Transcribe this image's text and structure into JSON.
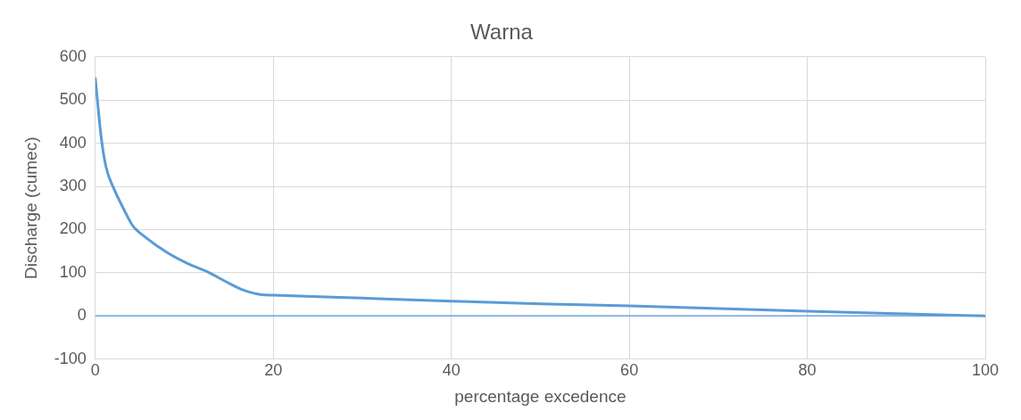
{
  "chart_data": {
    "type": "line",
    "title": "Warna",
    "xlabel": "percentage excedence",
    "ylabel": "Discharge (cumec)",
    "series": [
      {
        "color": "#5b9bd5",
        "x": [
          0,
          0.65,
          1.2,
          2.1,
          3.1,
          4.2,
          5.7,
          8.2,
          10.4,
          12.8,
          14.7,
          16.6,
          18.7,
          20,
          30,
          40,
          50,
          60,
          70,
          80,
          90,
          100
        ],
        "values": [
          550,
          415,
          345,
          294,
          251,
          209,
          181,
          145,
          121,
          100,
          79,
          60,
          49,
          48,
          41,
          34,
          28,
          23,
          17,
          11,
          5,
          0
        ]
      }
    ],
    "xlim": [
      0,
      100
    ],
    "xticks": [
      0,
      20,
      40,
      60,
      80,
      100
    ],
    "ylim": [
      -100,
      600
    ],
    "yticks": [
      -100,
      0,
      100,
      200,
      300,
      400,
      500,
      600
    ],
    "grid": true,
    "legend": false,
    "marker": "none",
    "line_style": "solid",
    "ref_lines": [
      {
        "axis": "y",
        "value": 0,
        "color": "#5b9bd5"
      }
    ]
  }
}
